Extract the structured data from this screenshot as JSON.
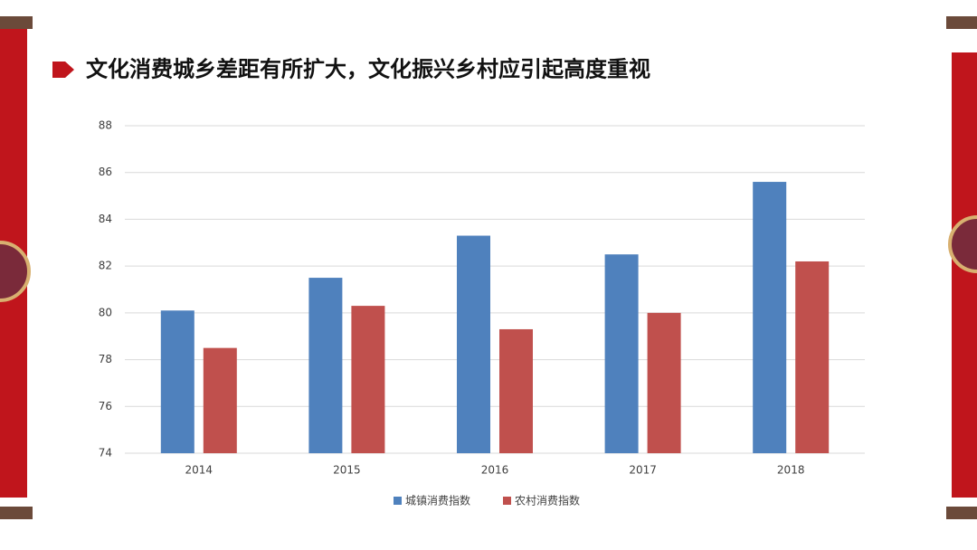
{
  "chart_data": {
    "type": "bar",
    "title": "文化消费城乡差距有所扩大，文化振兴乡村应引起高度重视",
    "categories": [
      "2014",
      "2015",
      "2016",
      "2017",
      "2018"
    ],
    "series": [
      {
        "name": "城镇消费指数",
        "color": "#4f81bd",
        "values": [
          80.1,
          81.5,
          83.3,
          82.5,
          85.6
        ]
      },
      {
        "name": "农村消费指数",
        "color": "#c0504d",
        "values": [
          78.5,
          80.3,
          79.3,
          80.0,
          82.2
        ]
      }
    ],
    "ylim": [
      74,
      88
    ],
    "yticks": [
      74,
      76,
      78,
      80,
      82,
      84,
      86,
      88
    ],
    "grid": true,
    "legend": "bottom"
  }
}
